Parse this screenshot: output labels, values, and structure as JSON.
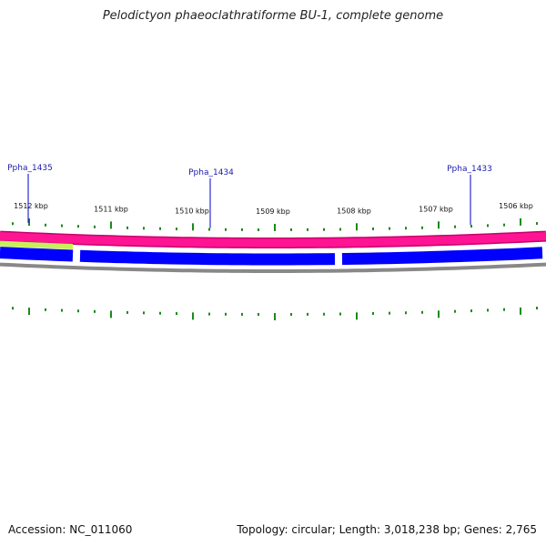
{
  "title": "Pelodictyon phaeoclathratiforme BU-1, complete genome",
  "footer": {
    "accession": "Accession: NC_011060",
    "summary": "Topology: circular; Length: 3,018,238 bp; Genes: 2,765"
  },
  "kbp_ticks": [
    "1512 kbp",
    "1511 kbp",
    "1510 kbp",
    "1509 kbp",
    "1508 kbp",
    "1507 kbp",
    "1506 kbp"
  ],
  "gene_labels": [
    "Ppha_1435",
    "Ppha_1434",
    "Ppha_1433"
  ],
  "colors": {
    "cds_track": "#ff1493",
    "cds_track_edge": "#c8006e",
    "feature_lime": "#c8f05a",
    "gene_arrow": "#0000ff",
    "backbone": "#888888",
    "tick": "#1a8a1a",
    "label_line": "#0000cc"
  }
}
